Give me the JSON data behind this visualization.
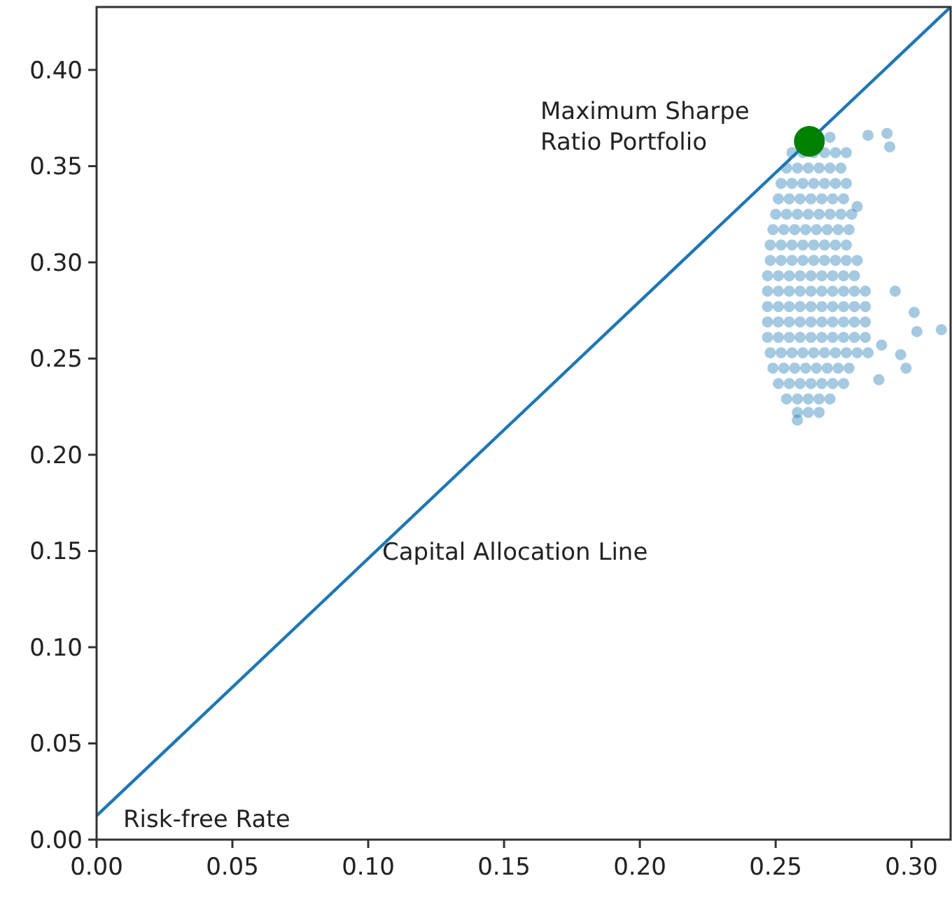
{
  "chart_data": {
    "type": "scatter",
    "xlim": [
      0,
      0.3144
    ],
    "ylim": [
      0,
      0.4327
    ],
    "xticks": [
      {
        "value": 0,
        "label": "0.00"
      },
      {
        "value": 0.05,
        "label": "0.05"
      },
      {
        "value": 0.1,
        "label": "0.10"
      },
      {
        "value": 0.15,
        "label": "0.15"
      },
      {
        "value": 0.2,
        "label": "0.20"
      },
      {
        "value": 0.25,
        "label": "0.25"
      },
      {
        "value": 0.3,
        "label": "0.30"
      }
    ],
    "yticks": [
      {
        "value": 0,
        "label": "0.00"
      },
      {
        "value": 0.05,
        "label": "0.05"
      },
      {
        "value": 0.1,
        "label": "0.10"
      },
      {
        "value": 0.15,
        "label": "0.15"
      },
      {
        "value": 0.2,
        "label": "0.20"
      },
      {
        "value": 0.25,
        "label": "0.25"
      },
      {
        "value": 0.3,
        "label": "0.30"
      },
      {
        "value": 0.35,
        "label": "0.35"
      },
      {
        "value": 0.4,
        "label": "0.40"
      }
    ],
    "grid": false,
    "marker": "circle",
    "series": [
      {
        "type": "line",
        "color": "#1f77b4",
        "x": [
          0,
          0.3144
        ],
        "values": [
          0.0124,
          0.4327
        ],
        "marker": "none",
        "line_style": "solid"
      },
      {
        "color": "#1f77b4",
        "x": [
          0.266,
          0.27,
          0.256,
          0.26,
          0.264,
          0.268,
          0.272,
          0.276,
          0.254,
          0.258,
          0.262,
          0.266,
          0.27,
          0.274,
          0.252,
          0.256,
          0.26,
          0.264,
          0.268,
          0.272,
          0.276,
          0.251,
          0.255,
          0.259,
          0.263,
          0.267,
          0.271,
          0.275,
          0.25,
          0.254,
          0.258,
          0.262,
          0.266,
          0.27,
          0.274,
          0.278,
          0.249,
          0.253,
          0.257,
          0.261,
          0.265,
          0.269,
          0.273,
          0.277,
          0.248,
          0.252,
          0.256,
          0.26,
          0.264,
          0.268,
          0.272,
          0.276,
          0.248,
          0.252,
          0.256,
          0.26,
          0.264,
          0.268,
          0.272,
          0.276,
          0.28,
          0.247,
          0.251,
          0.255,
          0.259,
          0.263,
          0.267,
          0.271,
          0.275,
          0.279,
          0.247,
          0.251,
          0.255,
          0.259,
          0.263,
          0.267,
          0.271,
          0.275,
          0.279,
          0.283,
          0.247,
          0.251,
          0.255,
          0.259,
          0.263,
          0.267,
          0.271,
          0.275,
          0.279,
          0.283,
          0.247,
          0.251,
          0.255,
          0.259,
          0.263,
          0.267,
          0.271,
          0.275,
          0.279,
          0.283,
          0.247,
          0.251,
          0.255,
          0.259,
          0.263,
          0.267,
          0.271,
          0.275,
          0.279,
          0.283,
          0.248,
          0.252,
          0.256,
          0.26,
          0.264,
          0.268,
          0.272,
          0.276,
          0.28,
          0.284,
          0.249,
          0.253,
          0.257,
          0.261,
          0.265,
          0.269,
          0.273,
          0.277,
          0.251,
          0.255,
          0.259,
          0.263,
          0.267,
          0.271,
          0.275,
          0.254,
          0.258,
          0.262,
          0.266,
          0.27,
          0.258,
          0.262,
          0.266,
          0.284,
          0.291,
          0.292,
          0.28,
          0.294,
          0.301,
          0.311,
          0.302,
          0.298,
          0.288,
          0.258,
          0.296,
          0.289
        ],
        "values": [
          0.365,
          0.365,
          0.357,
          0.357,
          0.357,
          0.357,
          0.357,
          0.357,
          0.349,
          0.349,
          0.349,
          0.349,
          0.349,
          0.349,
          0.341,
          0.341,
          0.341,
          0.341,
          0.341,
          0.341,
          0.341,
          0.333,
          0.333,
          0.333,
          0.333,
          0.333,
          0.333,
          0.333,
          0.325,
          0.325,
          0.325,
          0.325,
          0.325,
          0.325,
          0.325,
          0.325,
          0.317,
          0.317,
          0.317,
          0.317,
          0.317,
          0.317,
          0.317,
          0.317,
          0.309,
          0.309,
          0.309,
          0.309,
          0.309,
          0.309,
          0.309,
          0.309,
          0.301,
          0.301,
          0.301,
          0.301,
          0.301,
          0.301,
          0.301,
          0.301,
          0.301,
          0.293,
          0.293,
          0.293,
          0.293,
          0.293,
          0.293,
          0.293,
          0.293,
          0.293,
          0.285,
          0.285,
          0.285,
          0.285,
          0.285,
          0.285,
          0.285,
          0.285,
          0.285,
          0.285,
          0.277,
          0.277,
          0.277,
          0.277,
          0.277,
          0.277,
          0.277,
          0.277,
          0.277,
          0.277,
          0.269,
          0.269,
          0.269,
          0.269,
          0.269,
          0.269,
          0.269,
          0.269,
          0.269,
          0.269,
          0.261,
          0.261,
          0.261,
          0.261,
          0.261,
          0.261,
          0.261,
          0.261,
          0.261,
          0.261,
          0.253,
          0.253,
          0.253,
          0.253,
          0.253,
          0.253,
          0.253,
          0.253,
          0.253,
          0.253,
          0.245,
          0.245,
          0.245,
          0.245,
          0.245,
          0.245,
          0.245,
          0.245,
          0.237,
          0.237,
          0.237,
          0.237,
          0.237,
          0.237,
          0.237,
          0.229,
          0.229,
          0.229,
          0.229,
          0.229,
          0.222,
          0.222,
          0.222,
          0.366,
          0.367,
          0.36,
          0.329,
          0.285,
          0.274,
          0.265,
          0.264,
          0.245,
          0.239,
          0.218,
          0.252,
          0.257
        ]
      },
      {
        "color": "#008000",
        "x": [
          0.2624
        ],
        "values": [
          0.3629
        ]
      }
    ],
    "annotations": [
      "Maximum Sharpe\nRatio Portfolio",
      "Capital Allocation Line",
      "Risk-free Rate"
    ]
  }
}
